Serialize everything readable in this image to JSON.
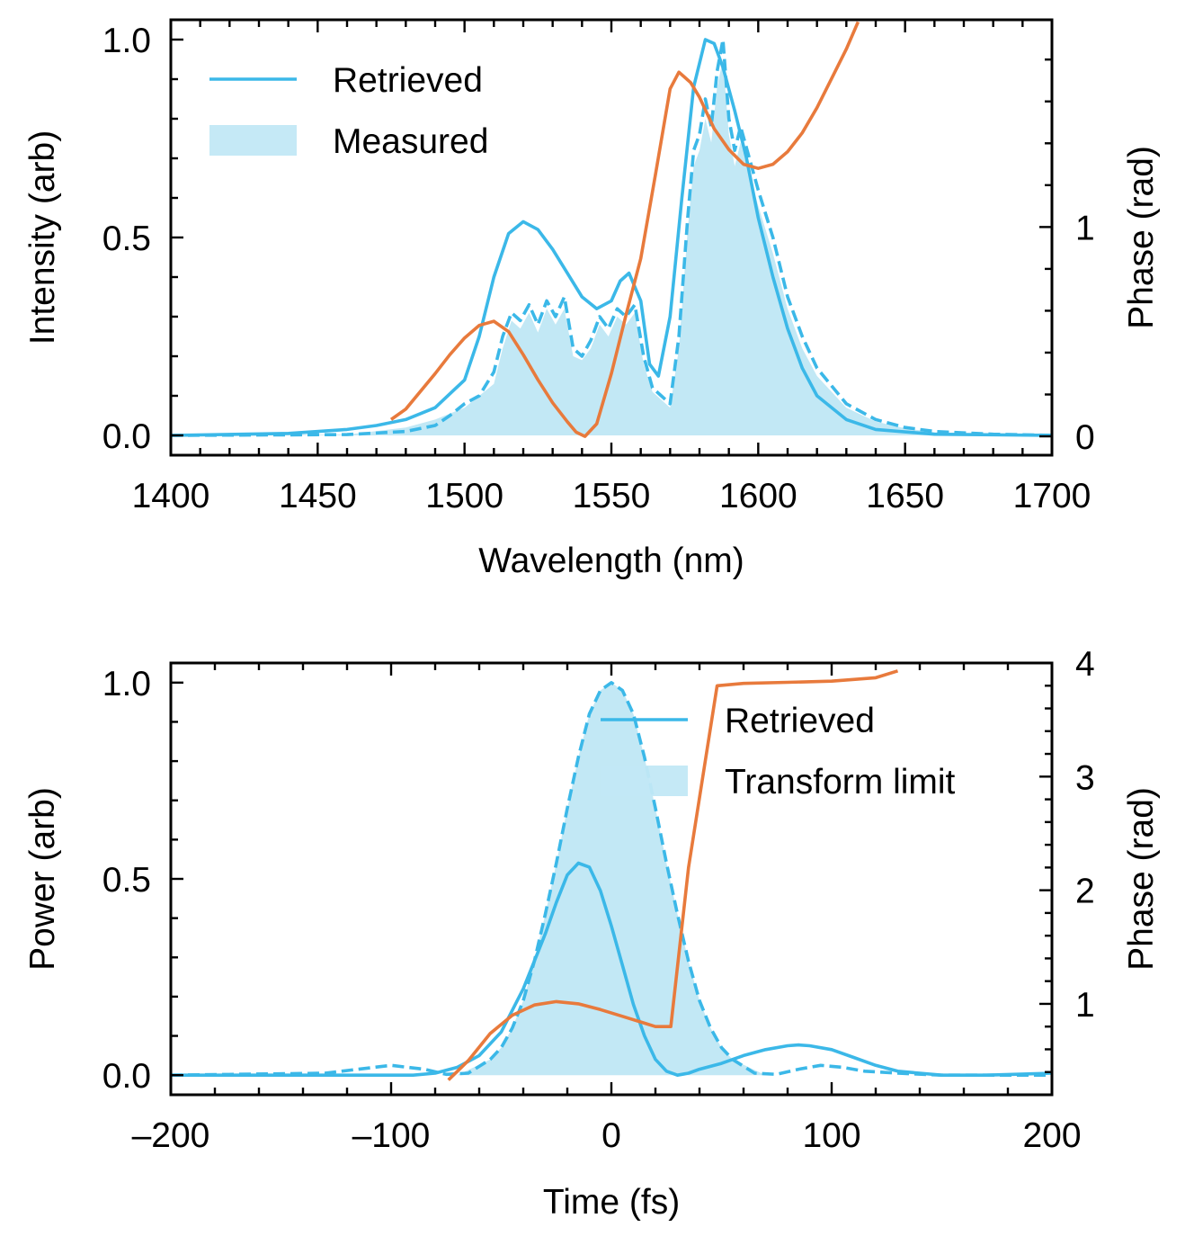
{
  "colors": {
    "retrieved": "#3BB8E8",
    "fill": "#C2E8F5",
    "phase": "#E87A3C",
    "axis": "#000000",
    "background": "#FFFFFF"
  },
  "chart_data": [
    {
      "type": "line",
      "panel": "top",
      "xlabel": "Wavelength (nm)",
      "ylabel": "Intensity (arb)",
      "y2label": "Phase (rad)",
      "xlim": [
        1400,
        1700
      ],
      "ylim": [
        -0.05,
        1.05
      ],
      "y2lim": [
        -0.09,
        1.99
      ],
      "xticks": [
        1400,
        1450,
        1500,
        1550,
        1600,
        1650,
        1700
      ],
      "yticks": [
        0.0,
        0.5,
        1.0
      ],
      "y2ticks": [
        0,
        1
      ],
      "xtick_labels": [
        "1400",
        "1450",
        "1500",
        "1550",
        "1600",
        "1650",
        "1700"
      ],
      "ytick_labels": [
        "0.0",
        "0.5",
        "1.0"
      ],
      "y2tick_labels": [
        "0",
        "1"
      ],
      "legend": {
        "location": "top-left",
        "entries": [
          "Retrieved",
          "Measured"
        ]
      },
      "grid": false,
      "series": [
        {
          "name": "Retrieved",
          "style": "solid",
          "color": "#3BB8E8",
          "axis": "left",
          "x": [
            1400,
            1440,
            1460,
            1470,
            1480,
            1490,
            1500,
            1505,
            1510,
            1515,
            1520,
            1525,
            1530,
            1535,
            1540,
            1545,
            1550,
            1553,
            1556,
            1560,
            1563,
            1566,
            1570,
            1574,
            1578,
            1582,
            1585,
            1588,
            1592,
            1596,
            1600,
            1605,
            1610,
            1615,
            1620,
            1630,
            1640,
            1660,
            1700
          ],
          "y": [
            0.0,
            0.005,
            0.015,
            0.025,
            0.04,
            0.07,
            0.14,
            0.25,
            0.4,
            0.51,
            0.54,
            0.52,
            0.47,
            0.41,
            0.35,
            0.32,
            0.34,
            0.39,
            0.41,
            0.34,
            0.18,
            0.15,
            0.3,
            0.6,
            0.88,
            1.0,
            0.99,
            0.93,
            0.82,
            0.7,
            0.55,
            0.4,
            0.27,
            0.17,
            0.1,
            0.04,
            0.015,
            0.003,
            0.0
          ]
        },
        {
          "name": "",
          "style": "dashed",
          "color": "#3BB8E8",
          "axis": "left",
          "x": [
            1400,
            1460,
            1480,
            1490,
            1495,
            1500,
            1505,
            1510,
            1513,
            1516,
            1519,
            1522,
            1525,
            1528,
            1531,
            1534,
            1537,
            1540,
            1543,
            1546,
            1549,
            1552,
            1555,
            1558,
            1561,
            1564,
            1567,
            1570,
            1573,
            1576,
            1578,
            1580,
            1582,
            1584,
            1586,
            1588,
            1590,
            1592,
            1594,
            1597,
            1600,
            1605,
            1610,
            1615,
            1620,
            1630,
            1640,
            1650,
            1660,
            1680,
            1700
          ],
          "y": [
            0.0,
            0.002,
            0.01,
            0.025,
            0.05,
            0.08,
            0.1,
            0.16,
            0.25,
            0.31,
            0.29,
            0.33,
            0.28,
            0.34,
            0.3,
            0.35,
            0.22,
            0.2,
            0.24,
            0.3,
            0.27,
            0.32,
            0.3,
            0.33,
            0.2,
            0.12,
            0.1,
            0.08,
            0.25,
            0.55,
            0.72,
            0.76,
            0.85,
            0.78,
            0.92,
            1.0,
            0.8,
            0.72,
            0.78,
            0.7,
            0.62,
            0.5,
            0.35,
            0.25,
            0.17,
            0.08,
            0.04,
            0.02,
            0.01,
            0.003,
            0.0
          ]
        },
        {
          "name": "Measured",
          "style": "fill",
          "color": "#C2E8F5",
          "axis": "left",
          "x": [
            1400,
            1460,
            1480,
            1490,
            1500,
            1510,
            1513,
            1516,
            1519,
            1522,
            1525,
            1528,
            1531,
            1534,
            1537,
            1540,
            1543,
            1546,
            1549,
            1552,
            1555,
            1558,
            1561,
            1564,
            1567,
            1570,
            1573,
            1576,
            1578,
            1580,
            1582,
            1584,
            1586,
            1588,
            1590,
            1592,
            1594,
            1597,
            1600,
            1605,
            1610,
            1615,
            1620,
            1630,
            1640,
            1650,
            1660,
            1680,
            1700
          ],
          "y": [
            0.0,
            0.002,
            0.02,
            0.04,
            0.07,
            0.13,
            0.22,
            0.29,
            0.27,
            0.31,
            0.26,
            0.32,
            0.28,
            0.32,
            0.2,
            0.19,
            0.22,
            0.28,
            0.25,
            0.3,
            0.28,
            0.31,
            0.18,
            0.11,
            0.09,
            0.07,
            0.22,
            0.52,
            0.68,
            0.72,
            0.8,
            0.74,
            0.88,
            0.95,
            0.76,
            0.68,
            0.74,
            0.66,
            0.58,
            0.46,
            0.32,
            0.22,
            0.15,
            0.07,
            0.035,
            0.018,
            0.008,
            0.002,
            0.0
          ]
        },
        {
          "name": "",
          "style": "solid",
          "color": "#E87A3C",
          "axis": "right",
          "x": [
            1475,
            1480,
            1490,
            1495,
            1500,
            1505,
            1510,
            1515,
            1520,
            1525,
            1530,
            1535,
            1538,
            1541,
            1545,
            1550,
            1555,
            1560,
            1565,
            1570,
            1573,
            1577,
            1580,
            1585,
            1590,
            1595,
            1600,
            1605,
            1610,
            1615,
            1620,
            1625,
            1630,
            1634
          ],
          "y": [
            0.08,
            0.13,
            0.3,
            0.39,
            0.47,
            0.53,
            0.55,
            0.5,
            0.39,
            0.27,
            0.16,
            0.07,
            0.02,
            0.0,
            0.06,
            0.3,
            0.58,
            0.85,
            1.25,
            1.66,
            1.74,
            1.69,
            1.62,
            1.47,
            1.37,
            1.3,
            1.28,
            1.3,
            1.36,
            1.45,
            1.57,
            1.71,
            1.85,
            1.98
          ]
        }
      ]
    },
    {
      "type": "line",
      "panel": "bottom",
      "xlabel": "Time (fs)",
      "ylabel": "Power (arb)",
      "y2label": "Phase (rad)",
      "xlim": [
        -200,
        200
      ],
      "ylim": [
        -0.05,
        1.05
      ],
      "y2lim": [
        0.2,
        4.0
      ],
      "xticks": [
        -200,
        -100,
        0,
        100,
        200
      ],
      "yticks": [
        0.0,
        0.5,
        1.0
      ],
      "y2ticks": [
        1,
        2,
        3,
        4
      ],
      "xtick_labels": [
        "–200",
        "–100",
        "0",
        "100",
        "200"
      ],
      "ytick_labels": [
        "0.0",
        "0.5",
        "1.0"
      ],
      "y2tick_labels": [
        "1",
        "2",
        "3",
        "4"
      ],
      "legend": {
        "location": "top-right",
        "entries": [
          "Retrieved",
          "Transform limit"
        ]
      },
      "grid": false,
      "series": [
        {
          "name": "Retrieved",
          "style": "solid",
          "color": "#3BB8E8",
          "axis": "left",
          "x": [
            -200,
            -120,
            -100,
            -90,
            -80,
            -70,
            -60,
            -50,
            -40,
            -30,
            -25,
            -20,
            -15,
            -10,
            -5,
            0,
            5,
            10,
            15,
            20,
            25,
            30,
            35,
            40,
            50,
            60,
            70,
            80,
            85,
            90,
            100,
            110,
            120,
            130,
            150,
            170,
            200
          ],
          "y": [
            0.0,
            0.0,
            0.0,
            0.0,
            0.005,
            0.02,
            0.05,
            0.11,
            0.22,
            0.36,
            0.44,
            0.51,
            0.54,
            0.53,
            0.47,
            0.38,
            0.28,
            0.18,
            0.1,
            0.04,
            0.01,
            0.0,
            0.005,
            0.015,
            0.03,
            0.05,
            0.065,
            0.075,
            0.077,
            0.075,
            0.065,
            0.045,
            0.025,
            0.01,
            0.0,
            0.0,
            0.005
          ]
        },
        {
          "name": "",
          "style": "dashed",
          "color": "#3BB8E8",
          "axis": "left",
          "x": [
            -200,
            -130,
            -115,
            -100,
            -85,
            -75,
            -65,
            -55,
            -50,
            -45,
            -40,
            -35,
            -30,
            -25,
            -20,
            -15,
            -10,
            -5,
            0,
            5,
            10,
            15,
            20,
            25,
            30,
            35,
            40,
            45,
            50,
            55,
            65,
            75,
            85,
            95,
            105,
            115,
            130,
            150,
            200
          ],
          "y": [
            0.0,
            0.005,
            0.015,
            0.025,
            0.015,
            0.002,
            0.005,
            0.04,
            0.07,
            0.12,
            0.19,
            0.29,
            0.41,
            0.54,
            0.68,
            0.81,
            0.92,
            0.98,
            1.0,
            0.98,
            0.92,
            0.81,
            0.68,
            0.54,
            0.41,
            0.29,
            0.19,
            0.12,
            0.07,
            0.04,
            0.005,
            0.002,
            0.015,
            0.025,
            0.02,
            0.01,
            0.005,
            0.0,
            0.0
          ]
        },
        {
          "name": "Transform limit",
          "style": "fill",
          "color": "#C2E8F5",
          "axis": "left",
          "x": [
            -200,
            -70,
            -55,
            -50,
            -45,
            -40,
            -35,
            -30,
            -25,
            -20,
            -15,
            -10,
            -5,
            0,
            5,
            10,
            15,
            20,
            25,
            30,
            35,
            40,
            45,
            50,
            55,
            70,
            200
          ],
          "y": [
            0.0,
            0.0,
            0.04,
            0.07,
            0.12,
            0.19,
            0.29,
            0.41,
            0.54,
            0.68,
            0.81,
            0.92,
            0.98,
            1.0,
            0.98,
            0.92,
            0.81,
            0.68,
            0.54,
            0.41,
            0.29,
            0.19,
            0.12,
            0.07,
            0.04,
            0.0,
            0.0
          ]
        },
        {
          "name": "",
          "style": "solid",
          "color": "#E87A3C",
          "axis": "right",
          "x": [
            -74,
            -65,
            -55,
            -45,
            -35,
            -25,
            -15,
            -5,
            5,
            15,
            20,
            25,
            27,
            35,
            48,
            60,
            80,
            100,
            120,
            130
          ],
          "y": [
            0.33,
            0.5,
            0.74,
            0.9,
            0.99,
            1.02,
            1.0,
            0.95,
            0.89,
            0.83,
            0.8,
            0.8,
            0.8,
            2.2,
            3.8,
            3.82,
            3.83,
            3.84,
            3.87,
            3.93
          ]
        }
      ]
    }
  ]
}
